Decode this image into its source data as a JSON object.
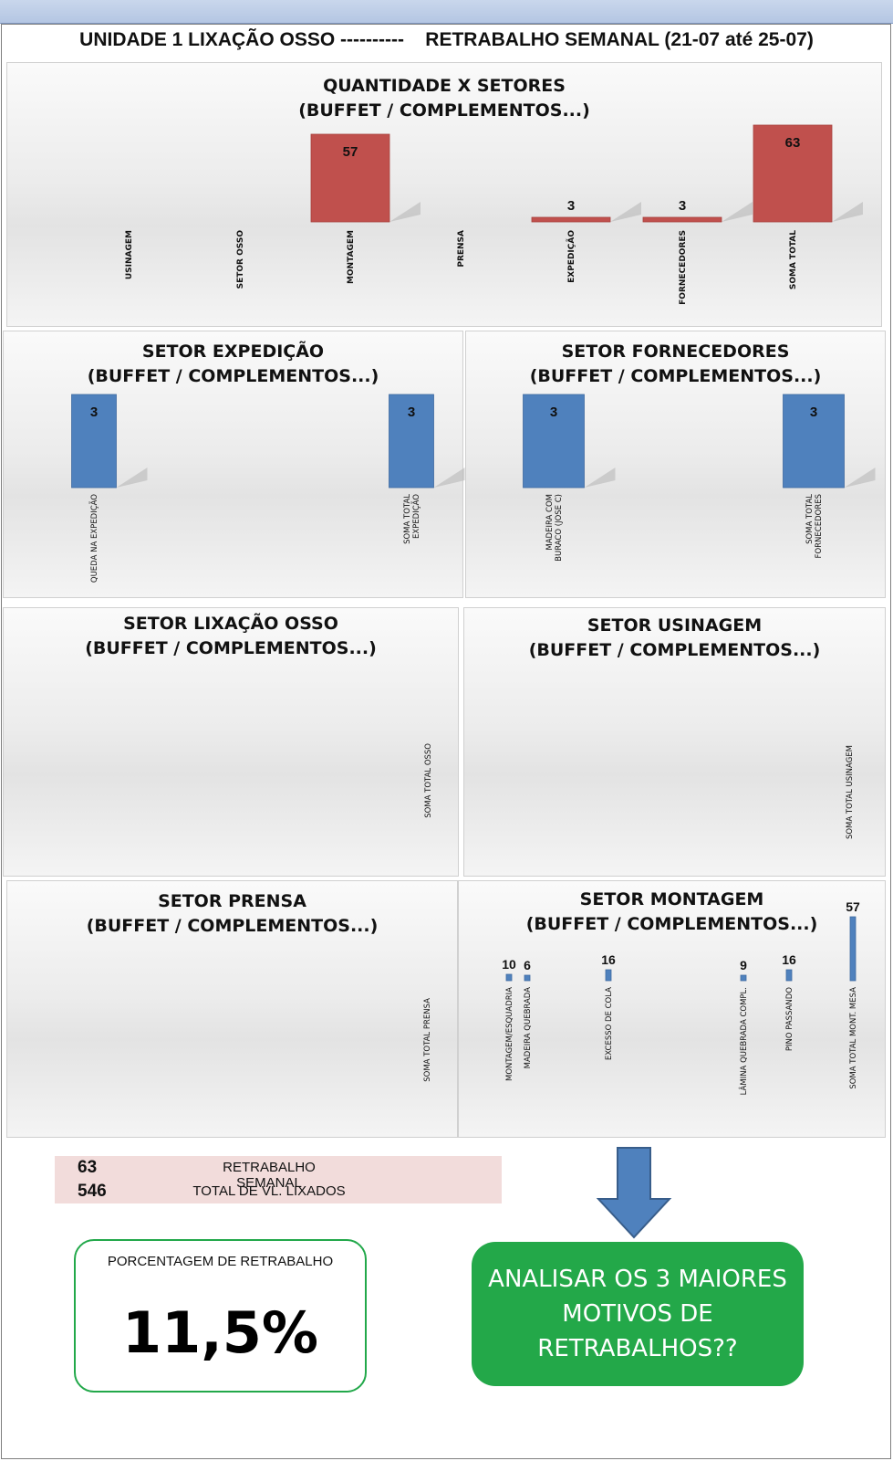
{
  "page": {
    "title": "UNIDADE 1 LIXAÇÃO OSSO ----------    RETRABALHO SEMANAL (21-07 até 25-07)"
  },
  "colors": {
    "red_bar": "#c0504d",
    "blue_bar": "#4f81bd",
    "green": "#23a849",
    "summary_bg": "#f2dcdb"
  },
  "chart_data": [
    {
      "id": "setores",
      "type": "bar",
      "title": "QUANTIDADE X SETORES",
      "subtitle": "(BUFFET / COMPLEMENTOS...)",
      "categories": [
        "USINAGEM",
        "SETOR OSSO",
        "MONTAGEM",
        "PRENSA",
        "EXPEDIÇÃO",
        "FORNECEDORES",
        "SOMA TOTAL"
      ],
      "values": [
        0,
        0,
        57,
        0,
        3,
        3,
        63
      ],
      "data_labels": [
        "",
        "",
        "57",
        "",
        "3",
        "3",
        "63"
      ],
      "color": "#c0504d"
    },
    {
      "id": "expedicao",
      "type": "bar",
      "title": "SETOR EXPEDIÇÃO",
      "subtitle": "(BUFFET / COMPLEMENTOS...)",
      "categories": [
        [
          "QUEDA NA EXPEDIÇÃO"
        ],
        [
          "SOMA TOTAL",
          "EXPEDIÇÃO"
        ]
      ],
      "values": [
        3,
        3
      ],
      "data_labels": [
        "3",
        "3"
      ],
      "color": "#4f81bd"
    },
    {
      "id": "fornecedores",
      "type": "bar",
      "title": "SETOR FORNECEDORES",
      "subtitle": "(BUFFET / COMPLEMENTOS...)",
      "categories": [
        [
          "MADEIRA COM",
          "BURACO (JOSE C)"
        ],
        [
          "SOMA TOTAL",
          "FORNECEDORES"
        ]
      ],
      "values": [
        3,
        3
      ],
      "data_labels": [
        "3",
        "3"
      ],
      "color": "#4f81bd"
    },
    {
      "id": "lixacao",
      "type": "bar",
      "title": "SETOR  LIXAÇÃO OSSO",
      "subtitle": "(BUFFET / COMPLEMENTOS...)",
      "categories": [
        [
          "SOMA TOTAL OSSO"
        ]
      ],
      "values": [
        0
      ],
      "data_labels": [
        ""
      ],
      "color": "#4f81bd"
    },
    {
      "id": "usinagem",
      "type": "bar",
      "title": "SETOR USINAGEM",
      "subtitle": "(BUFFET / COMPLEMENTOS...)",
      "categories": [
        [
          "SOMA TOTAL USINAGEM"
        ]
      ],
      "values": [
        0
      ],
      "data_labels": [
        ""
      ],
      "color": "#4f81bd"
    },
    {
      "id": "prensa",
      "type": "bar",
      "title": "SETOR PRENSA",
      "subtitle": "(BUFFET / COMPLEMENTOS...)",
      "categories": [
        [
          "SOMA TOTAL PRENSA"
        ]
      ],
      "values": [
        0
      ],
      "data_labels": [
        ""
      ],
      "color": "#4f81bd"
    },
    {
      "id": "montagem",
      "type": "bar",
      "title": "SETOR MONTAGEM",
      "subtitle": "(BUFFET / COMPLEMENTOS...)",
      "categories": [
        [
          "MONTAGEM/ESQUADRIA"
        ],
        [
          "MADEIRA QUEBRADA"
        ],
        [
          "EXCESSO DE COLA"
        ],
        [
          "LÂMINA QUEBRADA COMPL."
        ],
        [
          "PINO PASSANDO"
        ],
        [
          "SOMA TOTAL MONT. MESA"
        ]
      ],
      "values": [
        10,
        6,
        16,
        9,
        16,
        57
      ],
      "data_labels": [
        "10",
        "6",
        "16",
        "9",
        "16",
        "57"
      ],
      "color": "#4f81bd"
    }
  ],
  "summary": {
    "rows": [
      {
        "value": "63",
        "label": "RETRABALHO SEMANAL"
      },
      {
        "value": "546",
        "label": "TOTAL DE VL. LIXADOS"
      }
    ]
  },
  "percentage": {
    "label": "PORCENTAGEM DE RETRABALHO",
    "value": "11,5%"
  },
  "callout": {
    "lines": [
      "ANALISAR OS 3 MAIORES",
      "MOTIVOS DE",
      "RETRABALHOS??"
    ]
  }
}
